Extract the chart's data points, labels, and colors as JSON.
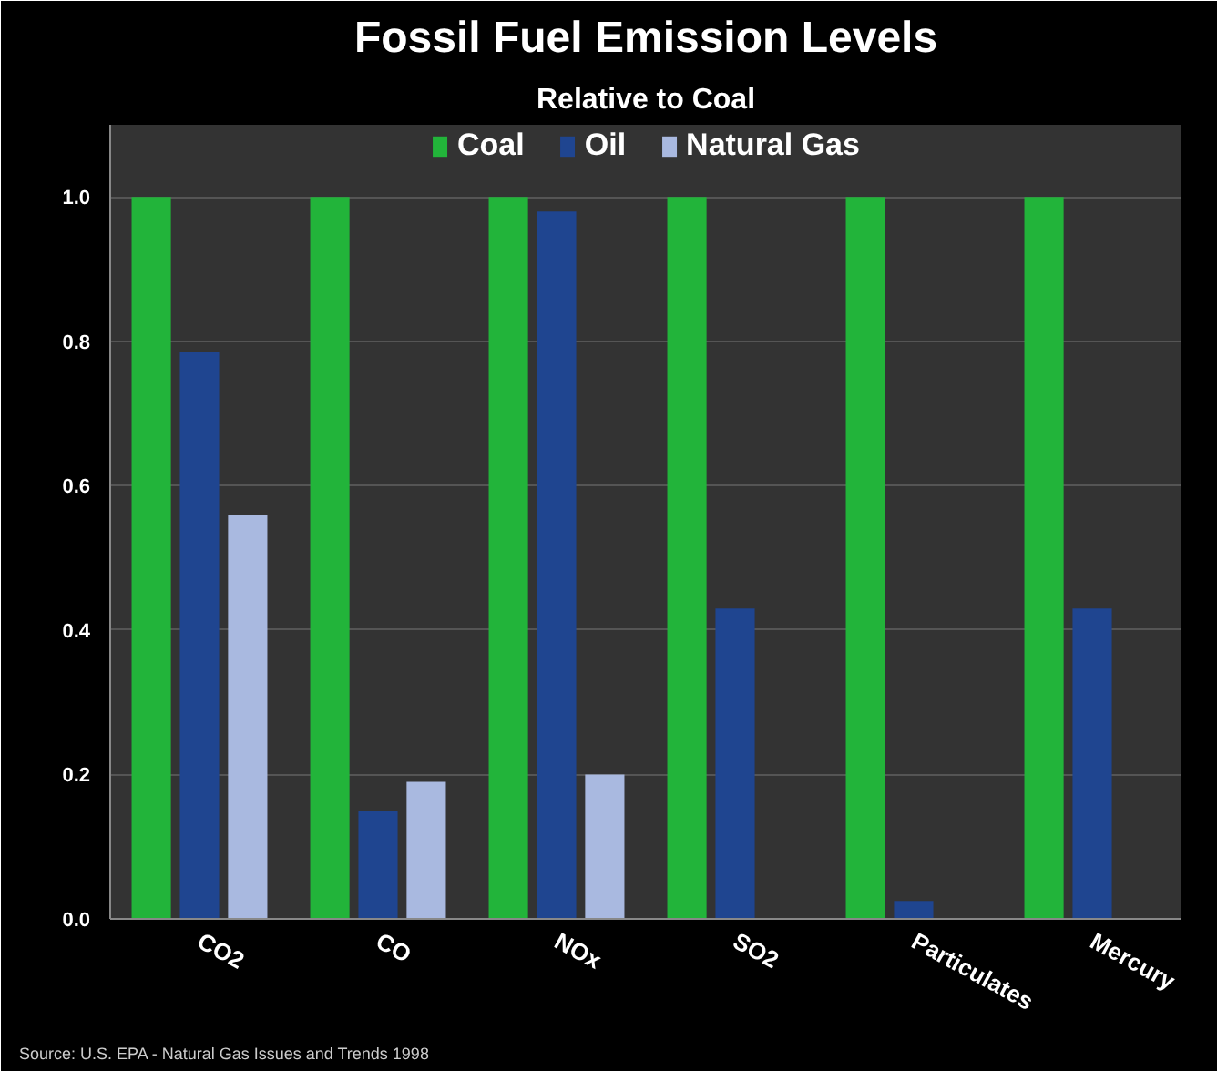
{
  "chart_data": {
    "type": "bar",
    "title": "Fossil Fuel Emission Levels",
    "subtitle": "Relative to Coal",
    "categories": [
      "CO2",
      "CO",
      "NOx",
      "SO2",
      "Particulates",
      "Mercury"
    ],
    "series": [
      {
        "name": "Coal",
        "color": "#22b43a",
        "values": [
          1.0,
          1.0,
          1.0,
          1.0,
          1.0,
          1.0
        ]
      },
      {
        "name": "Oil",
        "color": "#1f4590",
        "values": [
          0.785,
          0.15,
          0.98,
          0.43,
          0.025,
          0.43
        ]
      },
      {
        "name": "Natural Gas",
        "color": "#a9b9e0",
        "values": [
          0.56,
          0.19,
          0.2,
          0.0,
          0.0,
          0.0
        ]
      }
    ],
    "ylim": [
      0,
      1.1
    ],
    "yticks": [
      {
        "value": 0,
        "label": "0.0"
      },
      {
        "value": 0.2,
        "label": "0.2"
      },
      {
        "value": 0.4,
        "label": "0.4"
      },
      {
        "value": 0.6,
        "label": "0.6"
      },
      {
        "value": 0.8,
        "label": "0.8"
      },
      {
        "value": 1.0,
        "label": "1.0"
      }
    ],
    "grid": "y",
    "legend": "top",
    "annotations": [
      "Source: U.S. EPA - Natural Gas Issues and Trends 1998"
    ]
  }
}
